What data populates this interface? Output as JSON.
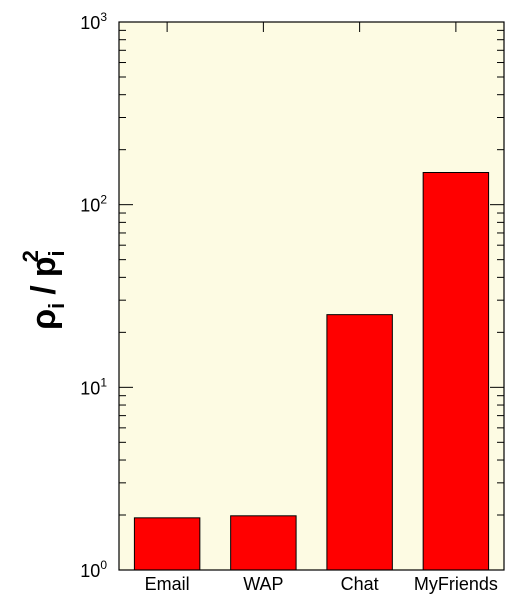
{
  "chart_data": {
    "type": "bar",
    "categories": [
      "Email",
      "WAP",
      "Chat",
      "MyFriends"
    ],
    "values": [
      1.93,
      1.98,
      25,
      150
    ],
    "ylabel": {
      "rho": "ρ",
      "rho_sub": "i",
      "slash": "/",
      "p": "p",
      "p_sub": "i",
      "p_sup": "2"
    },
    "yscale": "log",
    "ylim": [
      1,
      1000
    ],
    "y_ticks": [
      {
        "value": 1,
        "base": "10",
        "exp": "0"
      },
      {
        "value": 10,
        "base": "10",
        "exp": "1"
      },
      {
        "value": 100,
        "base": "10",
        "exp": "2"
      },
      {
        "value": 1000,
        "base": "10",
        "exp": "3"
      }
    ],
    "grid": false,
    "colors": {
      "plot_background": "#fdfbe3",
      "bar_fill": "#ff0000",
      "bar_stroke": "#000000",
      "axis": "#000000"
    }
  }
}
